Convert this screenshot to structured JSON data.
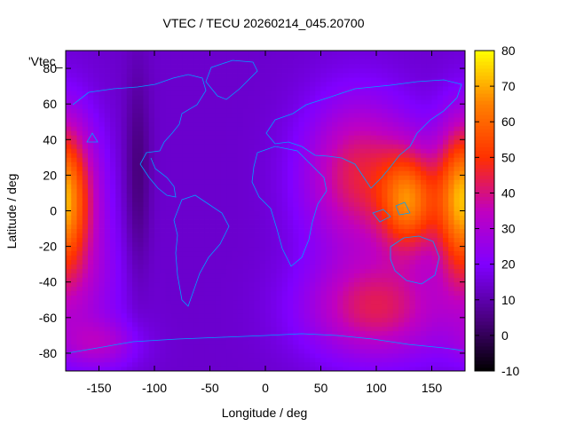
{
  "chart_data": {
    "type": "heatmap",
    "title": "VTEC / TECU 20260214_045.20700",
    "xlabel": "Longitude / deg",
    "ylabel": "Latitude / deg",
    "xlim": [
      -180,
      180
    ],
    "ylim": [
      -90,
      90
    ],
    "x_ticks": [
      -150,
      -100,
      -50,
      0,
      50,
      100,
      150
    ],
    "y_ticks": [
      -80,
      -60,
      -40,
      -20,
      0,
      20,
      40,
      60,
      80
    ],
    "colorbar": {
      "range": [
        -10,
        80
      ],
      "ticks": [
        -10,
        0,
        10,
        20,
        30,
        40,
        50,
        60,
        70,
        80
      ],
      "palette": [
        "#000000",
        "#4b0082",
        "#8000ff",
        "#c000c0",
        "#ff3000",
        "#ff8000",
        "#ffff00"
      ]
    },
    "legend": "'Vtec_",
    "features": [
      {
        "lon": -175,
        "lat": 10,
        "sx": 20,
        "sy": 30,
        "amp": 28
      },
      {
        "lon": -160,
        "lat": -40,
        "sx": 25,
        "sy": 25,
        "amp": 10
      },
      {
        "lon": 130,
        "lat": 5,
        "sx": 18,
        "sy": 20,
        "amp": 40
      },
      {
        "lon": 85,
        "lat": 20,
        "sx": 35,
        "sy": 30,
        "amp": 30
      },
      {
        "lon": 100,
        "lat": -55,
        "sx": 45,
        "sy": 20,
        "amp": 28
      },
      {
        "lon": 175,
        "lat": 5,
        "sx": 15,
        "sy": 30,
        "amp": 30
      },
      {
        "lon": -115,
        "lat": 20,
        "sx": 8,
        "sy": 40,
        "amp": -10
      },
      {
        "lon": -150,
        "lat": -75,
        "sx": 25,
        "sy": 10,
        "amp": 15
      }
    ],
    "background_value": 14
  }
}
